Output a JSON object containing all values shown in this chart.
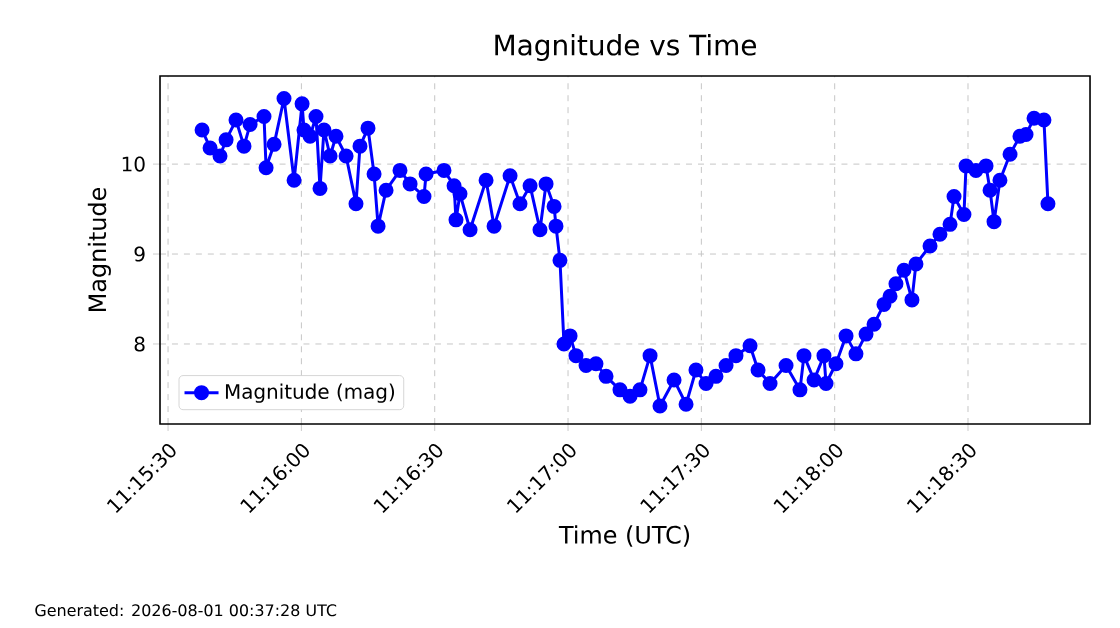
{
  "chart_data": {
    "type": "line",
    "title": "Magnitude vs Time",
    "xlabel": "Time (UTC)",
    "ylabel": "Magnitude",
    "annotations": [
      "Generated: 2026-08-01 00:37:28 UTC"
    ],
    "x": [
      11.26046,
      11.26096,
      11.26158,
      11.26196,
      11.26258,
      11.26308,
      11.26346,
      11.26433,
      11.26446,
      11.26496,
      11.26558,
      11.26621,
      11.26671,
      11.26683,
      11.26721,
      11.26758,
      11.26783,
      11.26808,
      11.26846,
      11.26883,
      11.26946,
      11.27008,
      11.27033,
      11.27083,
      11.27121,
      11.27146,
      11.27196,
      11.27283,
      11.27346,
      11.27433,
      11.27446,
      11.27558,
      11.27621,
      11.27633,
      11.27658,
      11.27721,
      11.27821,
      11.27871,
      11.27971,
      11.28033,
      11.28096,
      11.28158,
      11.28196,
      11.28246,
      11.28258,
      11.28283,
      11.28308,
      11.28346,
      11.28383,
      11.28446,
      11.28508,
      11.28571,
      11.28658,
      11.28721,
      11.28783,
      11.28846,
      11.28908,
      11.28996,
      11.29071,
      11.29133,
      11.29196,
      11.29258,
      11.29321,
      11.29383,
      11.29471,
      11.29521,
      11.29596,
      11.29696,
      11.29783,
      11.29808,
      11.29871,
      11.29933,
      11.29946,
      11.30008,
      11.30071,
      11.30133,
      11.30196,
      11.30246,
      11.30308,
      11.30346,
      11.30383,
      11.30433,
      11.30483,
      11.30508,
      11.30596,
      11.30658,
      11.30721,
      11.30746,
      11.30808,
      11.30821,
      11.30883,
      11.30946,
      11.30971,
      11.30996,
      11.31033,
      11.31096,
      11.31158,
      11.31196,
      11.31246,
      11.31308,
      11.31333
    ],
    "series": [
      {
        "name": "Magnitude (mag)",
        "color": "#0000ff",
        "values": [
          10.38,
          10.18,
          10.09,
          10.27,
          10.49,
          10.2,
          10.44,
          10.53,
          9.96,
          10.22,
          10.73,
          9.82,
          10.67,
          10.38,
          10.31,
          10.53,
          9.73,
          10.38,
          10.09,
          10.31,
          10.09,
          9.56,
          10.2,
          10.4,
          9.89,
          9.31,
          9.71,
          9.93,
          9.78,
          9.64,
          9.89,
          9.93,
          9.76,
          9.38,
          9.67,
          9.27,
          9.82,
          9.31,
          9.87,
          9.56,
          9.76,
          9.27,
          9.78,
          9.53,
          9.31,
          8.93,
          8.0,
          8.09,
          7.87,
          7.76,
          7.78,
          7.64,
          7.49,
          7.42,
          7.49,
          7.87,
          7.31,
          7.6,
          7.33,
          7.71,
          7.56,
          7.64,
          7.76,
          7.87,
          7.98,
          7.71,
          7.56,
          7.76,
          7.49,
          7.87,
          7.6,
          7.87,
          7.56,
          7.78,
          8.09,
          7.89,
          8.11,
          8.22,
          8.44,
          8.53,
          8.67,
          8.82,
          8.49,
          8.89,
          9.09,
          9.22,
          9.33,
          9.64,
          9.44,
          9.98,
          9.93,
          9.98,
          9.71,
          9.36,
          9.82,
          10.11,
          10.31,
          10.33,
          10.51,
          10.49,
          9.56
        ]
      }
    ],
    "xlim": [
      11.25783,
      11.31596
    ],
    "ylim": [
      7.11,
      10.98
    ],
    "xticks": [
      {
        "value": 11.258333,
        "label": "11:15:30"
      },
      {
        "value": 11.266667,
        "label": "11:16:00"
      },
      {
        "value": 11.275,
        "label": "11:16:30"
      },
      {
        "value": 11.283333,
        "label": "11:17:00"
      },
      {
        "value": 11.291667,
        "label": "11:17:30"
      },
      {
        "value": 11.3,
        "label": "11:18:00"
      },
      {
        "value": 11.308333,
        "label": "11:18:30"
      }
    ],
    "yticks": [
      8,
      9,
      10
    ],
    "grid": true,
    "legend": "bottom left",
    "marker": "circle",
    "line_style": "solid"
  }
}
